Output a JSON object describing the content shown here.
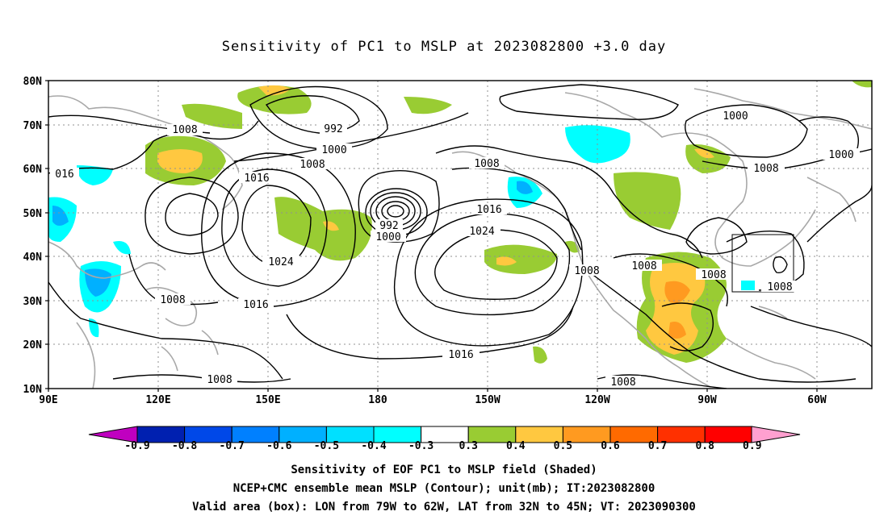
{
  "title": "Sensitivity of PC1 to MSLP at 2023082800 +3.0 day",
  "lat_labels": [
    "80N",
    "70N",
    "60N",
    "50N",
    "40N",
    "30N",
    "20N",
    "10N"
  ],
  "lon_labels": [
    "90E",
    "120E",
    "150E",
    "180",
    "150W",
    "120W",
    "90W",
    "60W"
  ],
  "contour_labels": [
    {
      "text": "1008"
    },
    {
      "text": "992"
    },
    {
      "text": "1000"
    },
    {
      "text": "1008"
    },
    {
      "text": "016"
    },
    {
      "text": "1016"
    },
    {
      "text": "1024"
    },
    {
      "text": "1008"
    },
    {
      "text": "1016"
    },
    {
      "text": "992"
    },
    {
      "text": "1000"
    },
    {
      "text": "1016"
    },
    {
      "text": "1024"
    },
    {
      "text": "1008"
    },
    {
      "text": "1008"
    },
    {
      "text": "1016"
    },
    {
      "text": "1008"
    },
    {
      "text": "1008"
    },
    {
      "text": "1008"
    },
    {
      "text": "1008"
    },
    {
      "text": "1000"
    },
    {
      "text": "1000"
    },
    {
      "text": "1008"
    },
    {
      "text": "1008"
    },
    {
      "text": "1008"
    }
  ],
  "colorbar": {
    "labels": [
      "-0.9",
      "-0.8",
      "-0.7",
      "-0.6",
      "-0.5",
      "-0.4",
      "-0.3",
      "0.3",
      "0.4",
      "0.5",
      "0.6",
      "0.7",
      "0.8",
      "0.9"
    ],
    "colors": [
      "#c000c0",
      "#0020b0",
      "#0048e8",
      "#0080ff",
      "#00b0ff",
      "#00e0ff",
      "#00ffff",
      "#ffffff",
      "#99cc33",
      "#ffc840",
      "#ff9a20",
      "#ff6a00",
      "#ff3000",
      "#ff0000",
      "#ffa0d0"
    ]
  },
  "captions": [
    "Sensitivity of EOF PC1 to MSLP field (Shaded)",
    "NCEP+CMC ensemble mean MSLP (Contour); unit(mb); IT:2023082800",
    "Valid area (box): LON from 79W to 62W, LAT from 32N to 45N; VT: 2023090300"
  ]
}
